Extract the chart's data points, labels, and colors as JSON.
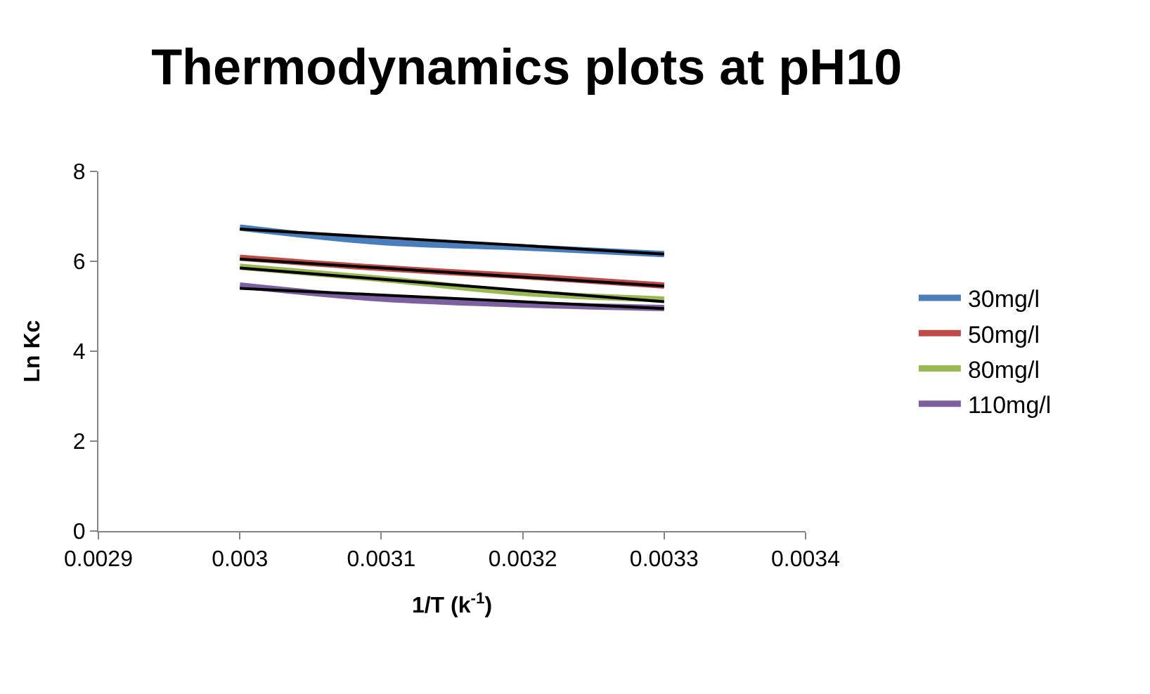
{
  "chart_data": {
    "type": "line",
    "title": "Thermodynamics plots at pH10",
    "xlabel": "1/T (k$^{-1}$)",
    "ylabel": "Ln Kc",
    "x": [
      0.003,
      0.0031,
      0.0032,
      0.0033
    ],
    "series": [
      {
        "name": "30mg/l",
        "color": "#4a7ebb",
        "values": [
          6.75,
          6.43,
          6.31,
          6.16
        ]
      },
      {
        "name": "50mg/l",
        "color": "#be4b48",
        "values": [
          6.08,
          5.85,
          5.67,
          5.46
        ]
      },
      {
        "name": "80mg/l",
        "color": "#98b954",
        "values": [
          5.88,
          5.61,
          5.3,
          5.15
        ]
      },
      {
        "name": "110mg/l",
        "color": "#7d60a0",
        "values": [
          5.46,
          5.17,
          5.04,
          4.96
        ]
      },
      {
        "type": "line",
        "color": "#000000",
        "values": [
          6.72,
          6.53,
          6.35,
          6.16
        ]
      },
      {
        "type": "line",
        "color": "#000000",
        "values": [
          6.05,
          5.85,
          5.65,
          5.45
        ]
      },
      {
        "type": "line",
        "color": "#000000",
        "values": [
          5.85,
          5.6,
          5.35,
          5.1
        ]
      },
      {
        "type": "line",
        "color": "#000000",
        "values": [
          5.4,
          5.25,
          5.1,
          4.95
        ]
      }
    ],
    "xlim": [
      0.0029,
      0.0034
    ],
    "xticks": [
      0.0029,
      0.003,
      0.0031,
      0.0032,
      0.0033,
      0.0034
    ],
    "ylim": [
      0,
      8
    ],
    "yticks": [
      0,
      2,
      4,
      6,
      8
    ],
    "grid": false,
    "legend": "right",
    "marker": "none",
    "line_style": "solid"
  }
}
